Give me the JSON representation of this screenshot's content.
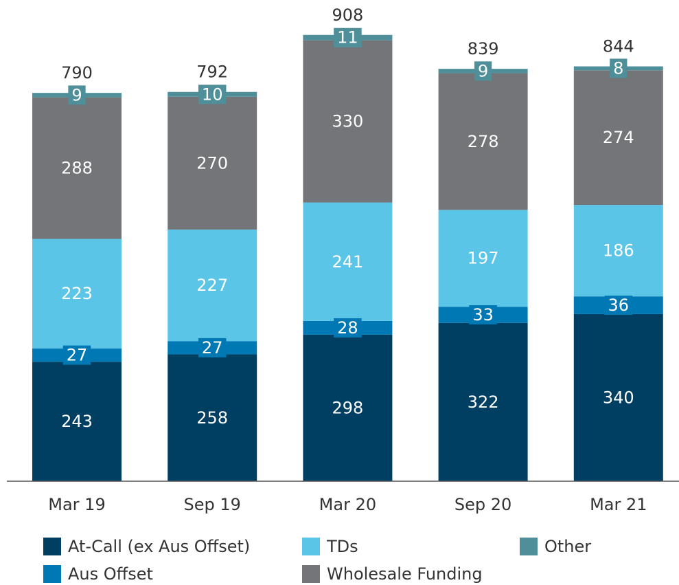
{
  "chart_data": {
    "type": "stacked_bar",
    "categories": [
      "Mar 19",
      "Sep 19",
      "Mar 20",
      "Sep 20",
      "Mar 21"
    ],
    "series": [
      {
        "name": "At-Call (ex Aus Offset)",
        "color": "#003f62",
        "values": [
          243,
          258,
          298,
          322,
          340
        ]
      },
      {
        "name": "Aus Offset",
        "color": "#0078b4",
        "values": [
          27,
          27,
          28,
          33,
          36
        ]
      },
      {
        "name": "TDs",
        "color": "#5bc5e8",
        "values": [
          223,
          227,
          241,
          197,
          186
        ]
      },
      {
        "name": "Wholesale Funding",
        "color": "#737578",
        "values": [
          288,
          270,
          330,
          278,
          274
        ]
      },
      {
        "name": "Other",
        "color": "#4e8f9a",
        "values": [
          9,
          10,
          11,
          9,
          8
        ]
      }
    ],
    "totals": [
      790,
      792,
      908,
      839,
      844
    ]
  }
}
